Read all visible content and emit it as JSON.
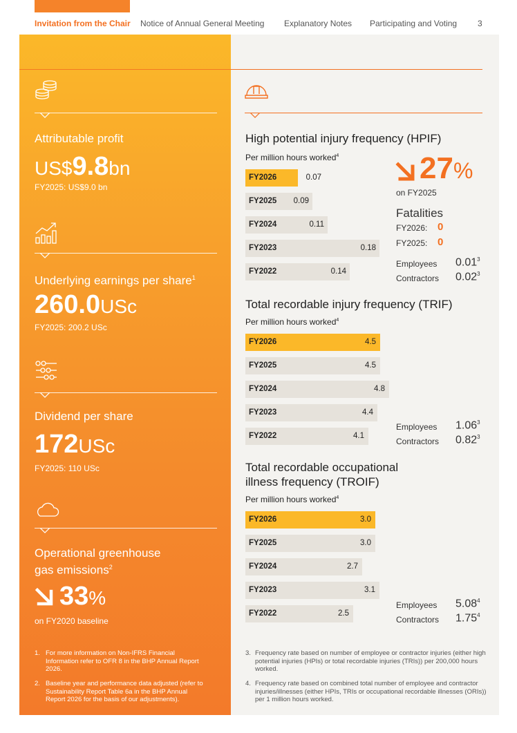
{
  "nav": {
    "items": [
      "Invitation from the Chair",
      "Notice of Annual General Meeting",
      "Explanatory Notes",
      "Participating and Voting"
    ],
    "page_number": "3"
  },
  "left": {
    "profit": {
      "title": "Attributable profit",
      "prefix": "US$",
      "value": "9.8",
      "suffix": "bn",
      "sub": "FY2025: US$9.0 bn",
      "icon": "coins-icon"
    },
    "eps": {
      "title": "Underlying earnings per share",
      "title_sup": "1",
      "value": "260.0",
      "suffix": "USc",
      "sub": "FY2025: 200.2 USc",
      "icon": "growth-chart-icon"
    },
    "dividend": {
      "title": "Dividend per share",
      "value": "172",
      "suffix": "USc",
      "sub": "FY2025: 110 USc",
      "icon": "sliders-icon"
    },
    "ghg": {
      "title_line1": "Operational greenhouse",
      "title_line2": "gas emissions",
      "title_sup": "2",
      "arrow": "down-right-arrow-icon",
      "value": "33",
      "suffix": "%",
      "sub": "on FY2020 baseline",
      "icon": "cloud-icon"
    },
    "footnotes": [
      {
        "n": "1.",
        "text": "For more information on Non-IFRS Financial Information refer to OFR 8 in the BHP Annual Report 2026."
      },
      {
        "n": "2.",
        "text": "Baseline year and performance data adjusted (refer to Sustainability Report Table 6a in the BHP Annual Report 2026 for the basis of our adjustments)."
      }
    ]
  },
  "right": {
    "icon": "hard-hat-icon",
    "hpif": {
      "title": "High potential injury frequency (HPIF)",
      "sub": "Per million hours worked",
      "sub_sup": "4",
      "change": {
        "arrow": "down-right-arrow-icon",
        "value": "27",
        "suffix": "%",
        "sub": "on FY2025"
      },
      "fatalities": {
        "title": "Fatalities",
        "rows": [
          {
            "label": "FY2026:",
            "value": "0"
          },
          {
            "label": "FY2025:",
            "value": "0"
          }
        ]
      },
      "employees": {
        "label": "Employees",
        "value": "0.01",
        "sup": "3"
      },
      "contractors": {
        "label": "Contractors",
        "value": "0.02",
        "sup": "3"
      }
    },
    "trif": {
      "title": "Total recordable injury frequency (TRIF)",
      "sub": "Per million hours worked",
      "sub_sup": "4",
      "employees": {
        "label": "Employees",
        "value": "1.06",
        "sup": "3"
      },
      "contractors": {
        "label": "Contractors",
        "value": "0.82",
        "sup": "3"
      }
    },
    "troif": {
      "title_line1": "Total recordable occupational",
      "title_line2": "illness frequency (TROIF)",
      "sub": "Per million hours worked",
      "sub_sup": "4",
      "employees": {
        "label": "Employees",
        "value": "5.08",
        "sup": "4"
      },
      "contractors": {
        "label": "Contractors",
        "value": "1.75",
        "sup": "4"
      }
    },
    "footnotes": [
      {
        "n": "3.",
        "text": "Frequency rate based on number of employee or contractor injuries (either high potential injuries (HPIs) or total recordable injuries (TRIs)) per 200,000 hours worked."
      },
      {
        "n": "4.",
        "text": "Frequency rate based on combined total number of employee and contractor injuries/illnesses (either HPIs, TRIs or occupational recordable illnesses (ORIs)) per 1 million hours worked."
      }
    ]
  },
  "colors": {
    "orange": "#f37021",
    "amber": "#fbb829",
    "bar_grey": "#e6e2db"
  },
  "chart_data": [
    {
      "type": "bar",
      "orientation": "horizontal",
      "categories": [
        "FY2026",
        "FY2025",
        "FY2024",
        "FY2023",
        "FY2022"
      ],
      "values": [
        0.07,
        0.09,
        0.11,
        0.18,
        0.14
      ],
      "title": "High potential injury frequency (HPIF)",
      "highlight": "FY2026",
      "value_labels": [
        "0.07",
        "0.09",
        "0.11",
        "0.18",
        "0.14"
      ]
    },
    {
      "type": "bar",
      "orientation": "horizontal",
      "categories": [
        "FY2026",
        "FY2025",
        "FY2024",
        "FY2023",
        "FY2022"
      ],
      "values": [
        4.5,
        4.5,
        4.8,
        4.4,
        4.1
      ],
      "title": "Total recordable injury frequency (TRIF)",
      "highlight": "FY2026",
      "value_labels": [
        "4.5",
        "4.5",
        "4.8",
        "4.4",
        "4.1"
      ]
    },
    {
      "type": "bar",
      "orientation": "horizontal",
      "categories": [
        "FY2026",
        "FY2025",
        "FY2024",
        "FY2023",
        "FY2022"
      ],
      "values": [
        3.0,
        3.0,
        2.7,
        3.1,
        2.5
      ],
      "title": "Total recordable occupational illness frequency (TROIF)",
      "highlight": "FY2026",
      "value_labels": [
        "3.0",
        "3.0",
        "2.7",
        "3.1",
        "2.5"
      ]
    }
  ]
}
